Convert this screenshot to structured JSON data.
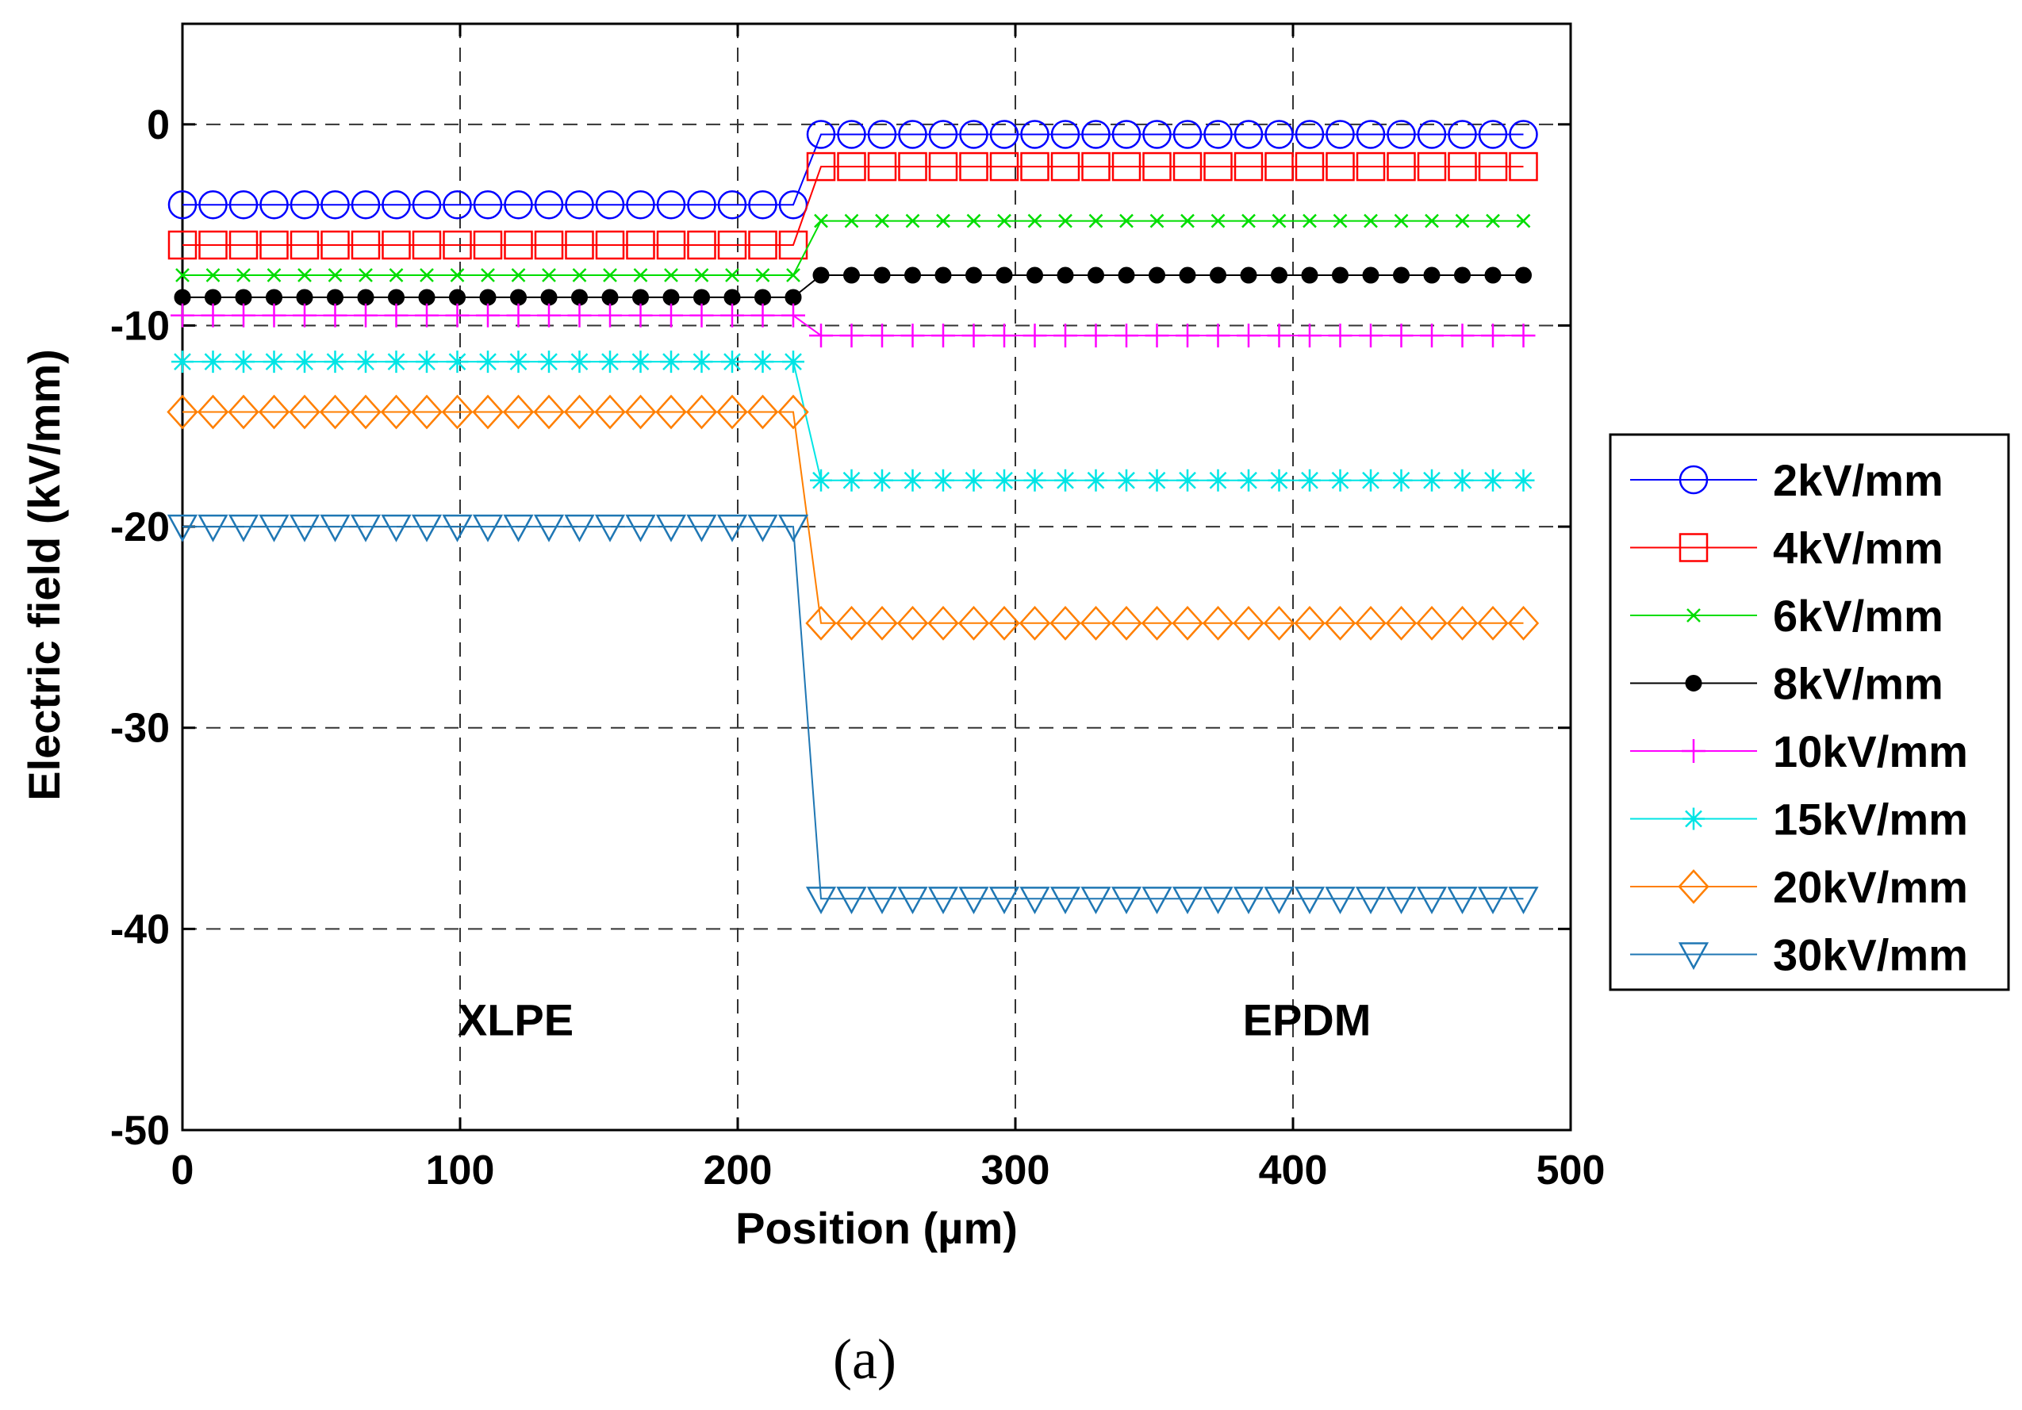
{
  "chart_data": {
    "type": "line",
    "title": "",
    "xlabel": "Position (µm)",
    "ylabel": "Electric field (kV/mm)",
    "xlim": [
      0,
      500
    ],
    "ylim": [
      -50,
      5
    ],
    "xticks": [
      "0",
      "100",
      "200",
      "300",
      "400",
      "500"
    ],
    "yticks": [
      "0",
      "-10",
      "-20",
      "-30",
      "-40",
      "-50"
    ],
    "grid": true,
    "legend_position": "right-outside",
    "regions": [
      {
        "label": "XLPE",
        "x": 120,
        "y": -44.5
      },
      {
        "label": "EPDM",
        "x": 405,
        "y": -44.5
      }
    ],
    "interface_x": 225,
    "marker_spacing": 11,
    "x_end": 485,
    "series": [
      {
        "name": "2kV/mm",
        "color": "#0000ff",
        "marker": "circle",
        "xlpe_value": -4,
        "epdm_value": -0.5
      },
      {
        "name": "4kV/mm",
        "color": "#ff0000",
        "marker": "square",
        "xlpe_value": -6,
        "epdm_value": -2.1
      },
      {
        "name": "6kV/mm",
        "color": "#00dd00",
        "marker": "x",
        "xlpe_value": -7.5,
        "epdm_value": -4.8
      },
      {
        "name": "8kV/mm",
        "color": "#000000",
        "marker": "dot",
        "xlpe_value": -8.6,
        "epdm_value": -7.5
      },
      {
        "name": "10kV/mm",
        "color": "#ff00ff",
        "marker": "plus",
        "xlpe_value": -9.5,
        "epdm_value": -10.5
      },
      {
        "name": "15kV/mm",
        "color": "#00e5e5",
        "marker": "asterisk",
        "xlpe_value": -11.8,
        "epdm_value": -17.7
      },
      {
        "name": "20kV/mm",
        "color": "#ff7f00",
        "marker": "diamond",
        "xlpe_value": -14.3,
        "epdm_value": -24.8
      },
      {
        "name": "30kV/mm",
        "color": "#1f77b4",
        "marker": "triangle-down",
        "xlpe_value": -20,
        "epdm_value": -38.5
      }
    ]
  },
  "caption": "(a)"
}
